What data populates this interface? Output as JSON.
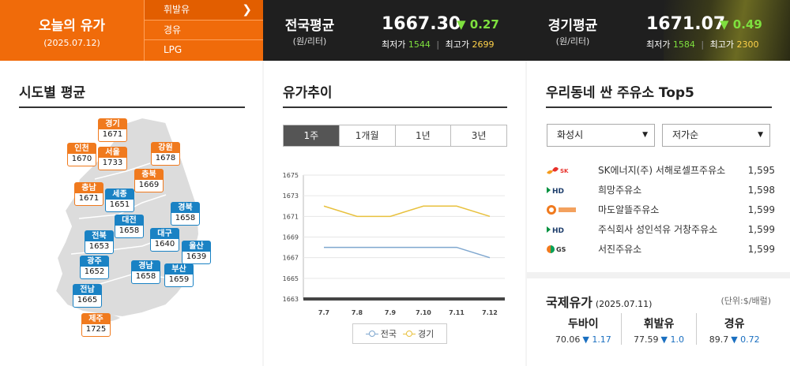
{
  "header": {
    "title": "오늘의 유가",
    "date": "(2025.07.12)",
    "fuel_tabs": [
      {
        "label": "휘발유",
        "active": true
      },
      {
        "label": "경유",
        "active": false
      },
      {
        "label": "LPG",
        "active": false
      }
    ],
    "national": {
      "name": "전국평균",
      "unit": "(원/리터)",
      "price": "1667.30",
      "change": "▼ 0.27",
      "min_label": "최저가",
      "min": "1544",
      "max_label": "최고가",
      "max": "2699"
    },
    "gyeonggi": {
      "name": "경기평균",
      "unit": "(원/리터)",
      "price": "1671.07",
      "change": "▼ 0.49",
      "min_label": "최저가",
      "min": "1584",
      "max_label": "최고가",
      "max": "2300"
    }
  },
  "regional": {
    "title": "시도별 평균",
    "regions": [
      {
        "name": "경기",
        "price": "1671",
        "color": "orange"
      },
      {
        "name": "인천",
        "price": "1670",
        "color": "orange"
      },
      {
        "name": "서울",
        "price": "1733",
        "color": "orange"
      },
      {
        "name": "강원",
        "price": "1678",
        "color": "orange"
      },
      {
        "name": "충북",
        "price": "1669",
        "color": "orange"
      },
      {
        "name": "충남",
        "price": "1671",
        "color": "orange"
      },
      {
        "name": "세종",
        "price": "1651",
        "color": "blue"
      },
      {
        "name": "경북",
        "price": "1658",
        "color": "blue"
      },
      {
        "name": "대전",
        "price": "1658",
        "color": "blue"
      },
      {
        "name": "전북",
        "price": "1653",
        "color": "blue"
      },
      {
        "name": "대구",
        "price": "1640",
        "color": "blue"
      },
      {
        "name": "울산",
        "price": "1639",
        "color": "blue"
      },
      {
        "name": "광주",
        "price": "1652",
        "color": "blue"
      },
      {
        "name": "경남",
        "price": "1658",
        "color": "blue"
      },
      {
        "name": "부산",
        "price": "1659",
        "color": "blue"
      },
      {
        "name": "전남",
        "price": "1665",
        "color": "blue"
      },
      {
        "name": "제주",
        "price": "1725",
        "color": "orange"
      }
    ]
  },
  "trend": {
    "title": "유가추이",
    "periods": [
      {
        "label": "1주",
        "active": true
      },
      {
        "label": "1개월",
        "active": false
      },
      {
        "label": "1년",
        "active": false
      },
      {
        "label": "3년",
        "active": false
      }
    ]
  },
  "chart_data": {
    "type": "line",
    "categories": [
      "7.7",
      "7.8",
      "7.9",
      "7.10",
      "7.11",
      "7.12"
    ],
    "yticks": [
      "1675",
      "1673",
      "1671",
      "1669",
      "1667",
      "1665",
      "1663"
    ],
    "ylim": [
      1663,
      1675
    ],
    "series": [
      {
        "name": "전국",
        "color": "#7fa7cf",
        "values": [
          1668,
          1668,
          1668,
          1668,
          1668,
          1667
        ]
      },
      {
        "name": "경기",
        "color": "#e8c13e",
        "values": [
          1672,
          1671,
          1671,
          1672,
          1672,
          1671
        ]
      }
    ],
    "legend": "bottom"
  },
  "top5": {
    "title": "우리동네 싼 주유소 Top5",
    "region_select": "화성시",
    "sort_select": "저가순",
    "stations": [
      {
        "brand": "SK에너지",
        "logo": "sk-energy-logo",
        "name": "SK에너지(주) 서해로셀프주유소",
        "price": "1,595"
      },
      {
        "brand": "HD현대오일뱅크",
        "logo": "hd-oilbank-logo",
        "name": "희망주유소",
        "price": "1,598"
      },
      {
        "brand": "알뜰주유소",
        "logo": "altteul-logo",
        "name": "마도알뜰주유소",
        "price": "1,599"
      },
      {
        "brand": "HD현대오일뱅크",
        "logo": "hd-oilbank-logo",
        "name": "주식회사 성인석유 거창주유소",
        "price": "1,599"
      },
      {
        "brand": "GS칼텍스",
        "logo": "gs-caltex-logo",
        "name": "서진주유소",
        "price": "1,599"
      }
    ]
  },
  "intl": {
    "title": "국제유가",
    "date": "(2025.07.11)",
    "unit": "(단위:$/배럴)",
    "items": [
      {
        "name": "두바이",
        "value": "70.06",
        "change": "▼ 1.17"
      },
      {
        "name": "휘발유",
        "value": "77.59",
        "change": "▼ 1.0"
      },
      {
        "name": "경유",
        "value": "89.7",
        "change": "▼ 0.72"
      }
    ]
  },
  "colors": {
    "orange": "#f06b0a",
    "blue": "#1a82c4",
    "up_green": "#7ee03e",
    "max_yellow": "#ffd24a",
    "down_blue": "#1a6fc0"
  }
}
